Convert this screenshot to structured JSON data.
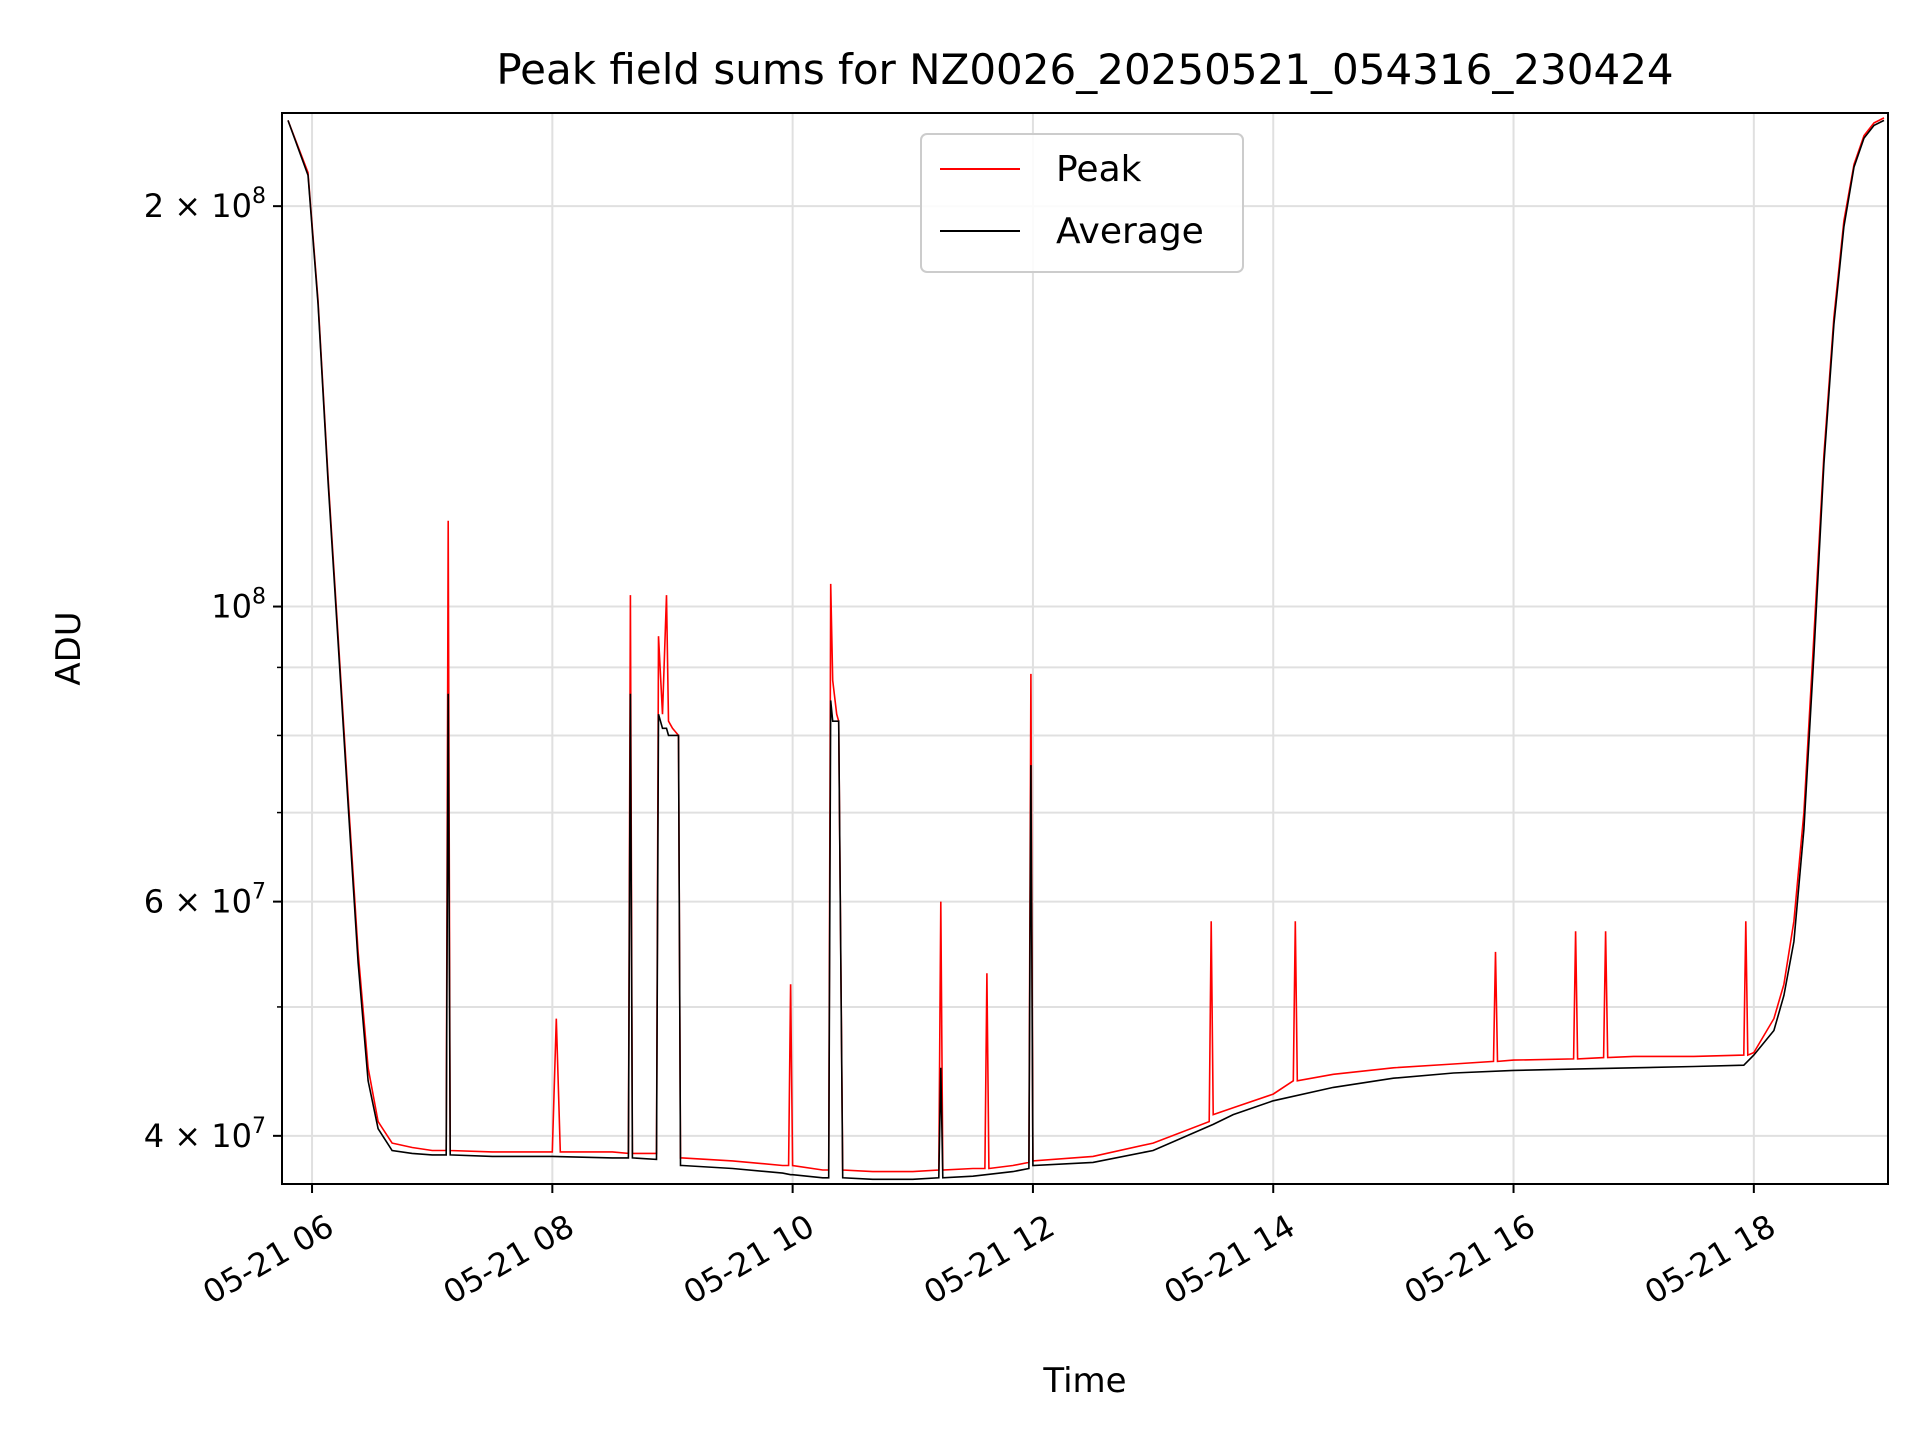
{
  "chart_data": {
    "type": "line",
    "title": "Peak field sums for NZ0026_20250521_054316_230424",
    "xlabel": "Time",
    "ylabel": "ADU",
    "yscale": "log",
    "grid": true,
    "legend_placement": "upper center",
    "xlim": [
      "2025-05-21 05:45",
      "2025-05-21 19:07"
    ],
    "ylim": [
      36800000,
      235000000
    ],
    "x_ticks": [
      "05-21 06",
      "05-21 08",
      "05-21 10",
      "05-21 12",
      "05-21 14",
      "05-21 16",
      "05-21 18"
    ],
    "x_tick_times": [
      "2025-05-21 06:00",
      "2025-05-21 08:00",
      "2025-05-21 10:00",
      "2025-05-21 12:00",
      "2025-05-21 14:00",
      "2025-05-21 16:00",
      "2025-05-21 18:00"
    ],
    "y_ticks": [
      {
        "value": 40000000,
        "label": "4 × 10^7",
        "mantissa": "4 × 10",
        "exponent": "7"
      },
      {
        "value": 60000000,
        "label": "6 × 10^7",
        "mantissa": "6 × 10",
        "exponent": "7"
      },
      {
        "value": 100000000,
        "label": "10^8",
        "mantissa": "10",
        "exponent": "8"
      },
      {
        "value": 200000000,
        "label": "2 × 10^8",
        "mantissa": "2 × 10",
        "exponent": "8"
      }
    ],
    "y_minor_ticks": [
      50000000,
      70000000,
      80000000,
      90000000
    ],
    "series": [
      {
        "name": "Peak",
        "color": "#ff0000",
        "x": [
          "2025-05-21 05:48",
          "2025-05-21 05:58",
          "2025-05-21 06:03",
          "2025-05-21 06:08",
          "2025-05-21 06:13",
          "2025-05-21 06:18",
          "2025-05-21 06:23",
          "2025-05-21 06:28",
          "2025-05-21 06:33",
          "2025-05-21 06:40",
          "2025-05-21 06:50",
          "2025-05-21 07:00",
          "2025-05-21 07:07",
          "2025-05-21 07:08",
          "2025-05-21 07:09",
          "2025-05-21 07:30",
          "2025-05-21 08:00",
          "2025-05-21 08:02",
          "2025-05-21 08:04",
          "2025-05-21 08:30",
          "2025-05-21 08:38",
          "2025-05-21 08:39",
          "2025-05-21 08:40",
          "2025-05-21 08:52",
          "2025-05-21 08:53",
          "2025-05-21 08:55",
          "2025-05-21 08:57",
          "2025-05-21 08:58",
          "2025-05-21 09:00",
          "2025-05-21 09:03",
          "2025-05-21 09:04",
          "2025-05-21 09:05",
          "2025-05-21 09:30",
          "2025-05-21 09:55",
          "2025-05-21 09:58",
          "2025-05-21 09:59",
          "2025-05-21 10:00",
          "2025-05-21 10:15",
          "2025-05-21 10:18",
          "2025-05-21 10:19",
          "2025-05-21 10:20",
          "2025-05-21 10:22",
          "2025-05-21 10:23",
          "2025-05-21 10:25",
          "2025-05-21 10:40",
          "2025-05-21 11:00",
          "2025-05-21 11:13",
          "2025-05-21 11:14",
          "2025-05-21 11:15",
          "2025-05-21 11:30",
          "2025-05-21 11:36",
          "2025-05-21 11:37",
          "2025-05-21 11:38",
          "2025-05-21 11:50",
          "2025-05-21 11:58",
          "2025-05-21 11:59",
          "2025-05-21 12:00",
          "2025-05-21 12:30",
          "2025-05-21 13:00",
          "2025-05-21 13:28",
          "2025-05-21 13:29",
          "2025-05-21 13:30",
          "2025-05-21 13:40",
          "2025-05-21 14:00",
          "2025-05-21 14:10",
          "2025-05-21 14:11",
          "2025-05-21 14:12",
          "2025-05-21 14:30",
          "2025-05-21 15:00",
          "2025-05-21 15:30",
          "2025-05-21 15:50",
          "2025-05-21 15:51",
          "2025-05-21 15:52",
          "2025-05-21 16:00",
          "2025-05-21 16:30",
          "2025-05-21 16:31",
          "2025-05-21 16:32",
          "2025-05-21 16:45",
          "2025-05-21 16:46",
          "2025-05-21 16:47",
          "2025-05-21 17:00",
          "2025-05-21 17:30",
          "2025-05-21 17:55",
          "2025-05-21 17:56",
          "2025-05-21 17:57",
          "2025-05-21 18:00",
          "2025-05-21 18:10",
          "2025-05-21 18:15",
          "2025-05-21 18:20",
          "2025-05-21 18:25",
          "2025-05-21 18:30",
          "2025-05-21 18:35",
          "2025-05-21 18:40",
          "2025-05-21 18:45",
          "2025-05-21 18:50",
          "2025-05-21 18:55",
          "2025-05-21 19:00",
          "2025-05-21 19:05"
        ],
        "values": [
          232000000,
          212000000,
          170000000,
          125000000,
          95000000,
          72000000,
          55000000,
          45000000,
          41000000,
          39500000,
          39200000,
          39000000,
          39000000,
          116000000,
          39000000,
          38900000,
          38900000,
          49000000,
          38900000,
          38900000,
          38800000,
          102000000,
          38800000,
          38800000,
          95000000,
          83000000,
          102000000,
          82000000,
          81000000,
          80000000,
          38500000,
          38500000,
          38300000,
          38000000,
          38000000,
          52000000,
          38000000,
          37700000,
          37700000,
          104000000,
          88000000,
          83000000,
          82000000,
          37700000,
          37600000,
          37600000,
          37700000,
          60000000,
          37700000,
          37800000,
          37800000,
          53000000,
          37800000,
          38000000,
          38200000,
          89000000,
          38300000,
          38600000,
          39500000,
          41000000,
          58000000,
          41500000,
          42000000,
          43000000,
          44000000,
          58000000,
          44000000,
          44500000,
          45000000,
          45300000,
          45500000,
          55000000,
          45500000,
          45600000,
          45700000,
          57000000,
          45700000,
          45800000,
          57000000,
          45800000,
          45900000,
          45900000,
          46000000,
          58000000,
          46000000,
          46200000,
          49000000,
          52000000,
          58000000,
          70000000,
          95000000,
          130000000,
          165000000,
          195000000,
          215000000,
          226000000,
          231000000,
          233000000
        ]
      },
      {
        "name": "Average",
        "color": "#000000",
        "x": [
          "2025-05-21 05:48",
          "2025-05-21 05:58",
          "2025-05-21 06:03",
          "2025-05-21 06:08",
          "2025-05-21 06:13",
          "2025-05-21 06:18",
          "2025-05-21 06:23",
          "2025-05-21 06:28",
          "2025-05-21 06:33",
          "2025-05-21 06:40",
          "2025-05-21 06:50",
          "2025-05-21 07:00",
          "2025-05-21 07:07",
          "2025-05-21 07:08",
          "2025-05-21 07:09",
          "2025-05-21 07:30",
          "2025-05-21 08:00",
          "2025-05-21 08:30",
          "2025-05-21 08:38",
          "2025-05-21 08:39",
          "2025-05-21 08:40",
          "2025-05-21 08:52",
          "2025-05-21 08:53",
          "2025-05-21 08:55",
          "2025-05-21 08:57",
          "2025-05-21 08:58",
          "2025-05-21 09:00",
          "2025-05-21 09:03",
          "2025-05-21 09:04",
          "2025-05-21 09:05",
          "2025-05-21 09:30",
          "2025-05-21 09:55",
          "2025-05-21 09:59",
          "2025-05-21 10:00",
          "2025-05-21 10:15",
          "2025-05-21 10:18",
          "2025-05-21 10:19",
          "2025-05-21 10:20",
          "2025-05-21 10:22",
          "2025-05-21 10:23",
          "2025-05-21 10:25",
          "2025-05-21 10:40",
          "2025-05-21 11:00",
          "2025-05-21 11:13",
          "2025-05-21 11:14",
          "2025-05-21 11:15",
          "2025-05-21 11:30",
          "2025-05-21 11:50",
          "2025-05-21 11:58",
          "2025-05-21 11:59",
          "2025-05-21 12:00",
          "2025-05-21 12:30",
          "2025-05-21 13:00",
          "2025-05-21 13:30",
          "2025-05-21 13:40",
          "2025-05-21 14:00",
          "2025-05-21 14:30",
          "2025-05-21 15:00",
          "2025-05-21 15:30",
          "2025-05-21 16:00",
          "2025-05-21 16:30",
          "2025-05-21 17:00",
          "2025-05-21 17:30",
          "2025-05-21 17:55",
          "2025-05-21 18:00",
          "2025-05-21 18:10",
          "2025-05-21 18:15",
          "2025-05-21 18:20",
          "2025-05-21 18:25",
          "2025-05-21 18:30",
          "2025-05-21 18:35",
          "2025-05-21 18:40",
          "2025-05-21 18:45",
          "2025-05-21 18:50",
          "2025-05-21 18:55",
          "2025-05-21 19:00",
          "2025-05-21 19:05"
        ],
        "values": [
          232000000,
          211000000,
          169000000,
          124000000,
          94000000,
          71000000,
          54000000,
          44000000,
          40500000,
          39000000,
          38800000,
          38700000,
          38700000,
          86000000,
          38700000,
          38600000,
          38600000,
          38500000,
          38500000,
          86000000,
          38500000,
          38400000,
          83000000,
          81000000,
          81000000,
          80000000,
          80000000,
          80000000,
          38000000,
          38000000,
          37800000,
          37500000,
          37400000,
          37400000,
          37200000,
          37200000,
          85000000,
          82000000,
          82000000,
          82000000,
          37200000,
          37100000,
          37100000,
          37200000,
          45000000,
          37200000,
          37300000,
          37600000,
          37800000,
          76000000,
          38000000,
          38200000,
          39000000,
          40800000,
          41500000,
          42500000,
          43500000,
          44200000,
          44600000,
          44800000,
          44900000,
          45000000,
          45100000,
          45200000,
          46000000,
          48000000,
          51000000,
          56000000,
          68000000,
          92000000,
          128000000,
          163000000,
          193000000,
          214000000,
          225000000,
          230000000,
          232000000
        ]
      }
    ]
  }
}
